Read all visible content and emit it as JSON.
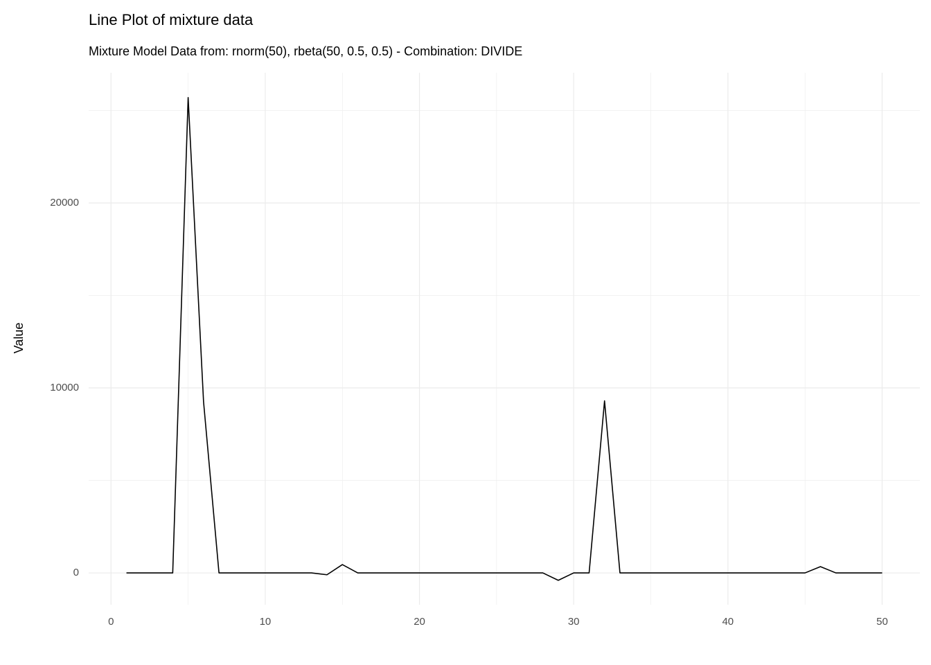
{
  "chart_data": {
    "type": "line",
    "title": "Line Plot of mixture data",
    "subtitle": "Mixture Model Data from: rnorm(50), rbeta(50, 0.5, 0.5) - Combination: DIVIDE",
    "y_label": "Value",
    "x": [
      1,
      2,
      3,
      4,
      5,
      6,
      7,
      8,
      9,
      10,
      11,
      12,
      13,
      14,
      15,
      16,
      17,
      18,
      19,
      20,
      21,
      22,
      23,
      24,
      25,
      26,
      27,
      28,
      29,
      30,
      31,
      32,
      33,
      34,
      35,
      36,
      37,
      38,
      39,
      40,
      41,
      42,
      43,
      44,
      45,
      46,
      47,
      48,
      49,
      50
    ],
    "series": [
      {
        "name": "Value",
        "color": "#000000",
        "values": [
          0,
          0,
          0,
          0,
          25700,
          9250,
          0,
          0,
          0,
          0,
          0,
          0,
          0,
          -100,
          450,
          0,
          0,
          0,
          0,
          0,
          0,
          0,
          0,
          0,
          0,
          0,
          0,
          0,
          -400,
          0,
          0,
          9300,
          0,
          0,
          0,
          0,
          0,
          0,
          0,
          0,
          0,
          0,
          0,
          0,
          0,
          340,
          0,
          0,
          0,
          0
        ]
      }
    ],
    "xlim": [
      -1.45,
      52.45
    ],
    "ylim": [
      -1720,
      27040
    ],
    "xticks": [
      0,
      10,
      20,
      30,
      40,
      50
    ],
    "yticks": [
      0,
      10000,
      20000
    ],
    "xminor": [
      5,
      15,
      25,
      35,
      45
    ],
    "yminor": [
      5000,
      15000,
      25000
    ],
    "grid": true
  }
}
